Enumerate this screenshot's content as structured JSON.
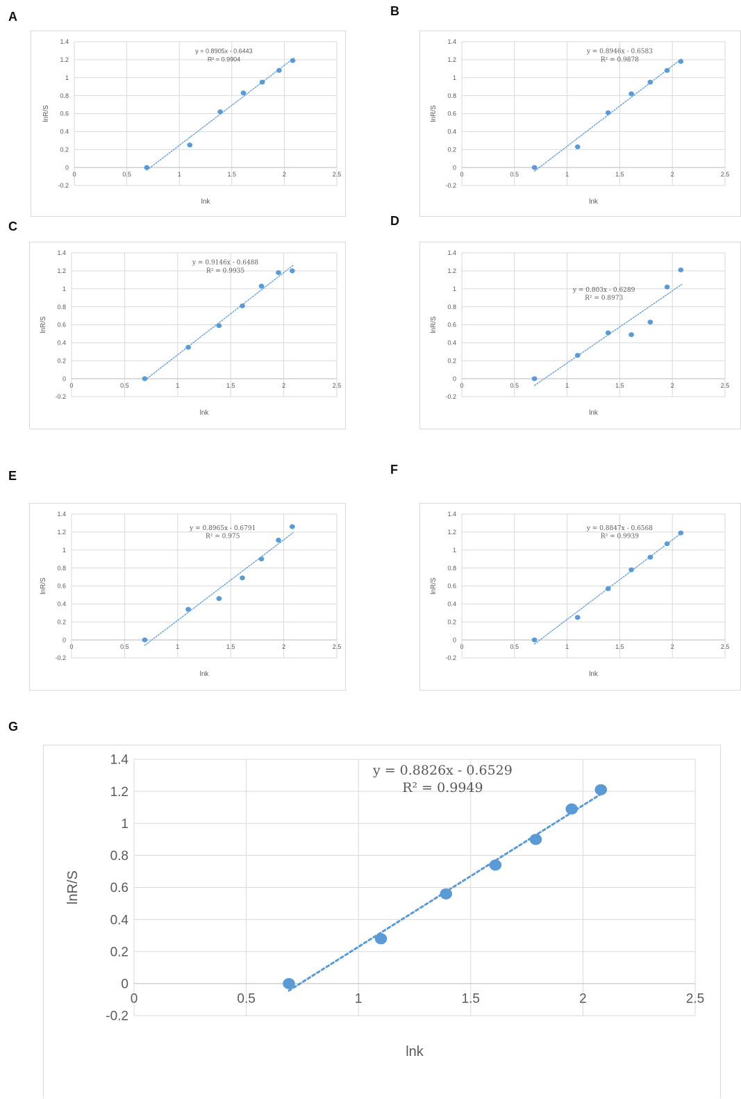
{
  "chart_data": [
    {
      "panel": "A",
      "type": "scatter",
      "x": [
        0.69,
        1.1,
        1.39,
        1.61,
        1.79,
        1.95,
        2.08
      ],
      "y": [
        0.0,
        0.25,
        0.62,
        0.83,
        0.95,
        1.08,
        1.19
      ],
      "trendline": {
        "slope": 0.8905,
        "intercept": -0.6443
      },
      "equation": "y = 0.8905x - 0.6443",
      "r2": "R² = 0.9904",
      "xlabel": "lnk",
      "ylabel": "lnR/S",
      "xlim": [
        0,
        2.5
      ],
      "ylim": [
        -0.2,
        1.4
      ],
      "xticks": [
        "0",
        "0.5",
        "1",
        "1.5",
        "2",
        "2.5"
      ],
      "yticks": [
        "-0.2",
        "0",
        "0.2",
        "0.4",
        "0.6",
        "0.8",
        "1",
        "1.2",
        "1.4"
      ],
      "grid": true
    },
    {
      "panel": "B",
      "type": "scatter",
      "x": [
        0.69,
        1.1,
        1.39,
        1.61,
        1.79,
        1.95,
        2.08
      ],
      "y": [
        0.0,
        0.23,
        0.61,
        0.82,
        0.95,
        1.08,
        1.18
      ],
      "trendline": {
        "slope": 0.8946,
        "intercept": -0.6583
      },
      "equation": "y = 0.8946x - 0.6583",
      "r2": "R² = 0.9878",
      "xlabel": "lnk",
      "ylabel": "lnR/S",
      "xlim": [
        0,
        2.5
      ],
      "ylim": [
        -0.2,
        1.4
      ],
      "xticks": [
        "0",
        "0.5",
        "1",
        "1.5",
        "2",
        "2.5"
      ],
      "yticks": [
        "-0.2",
        "0",
        "0.2",
        "0.4",
        "0.6",
        "0.8",
        "1",
        "1.2",
        "1.4"
      ],
      "grid": true
    },
    {
      "panel": "C",
      "type": "scatter",
      "x": [
        0.69,
        1.1,
        1.39,
        1.61,
        1.79,
        1.95,
        2.08
      ],
      "y": [
        0.0,
        0.35,
        0.59,
        0.81,
        1.03,
        1.18,
        1.2
      ],
      "trendline": {
        "slope": 0.9146,
        "intercept": -0.6488
      },
      "equation": "y = 0.9146x - 0.6488",
      "r2": "R² = 0.9935",
      "xlabel": "lnk",
      "ylabel": "lnR/S",
      "xlim": [
        0,
        2.5
      ],
      "ylim": [
        -0.2,
        1.4
      ],
      "xticks": [
        "0",
        "0.5",
        "1",
        "1.5",
        "2",
        "2.5"
      ],
      "yticks": [
        "-0.2",
        "0",
        "0.2",
        "0.4",
        "0.6",
        "0.8",
        "1",
        "1.2",
        "1.4"
      ],
      "grid": true
    },
    {
      "panel": "D",
      "type": "scatter",
      "x": [
        0.69,
        1.1,
        1.39,
        1.61,
        1.79,
        1.95,
        2.08
      ],
      "y": [
        0.0,
        0.26,
        0.51,
        0.49,
        0.63,
        1.02,
        1.21
      ],
      "trendline": {
        "slope": 0.803,
        "intercept": -0.6289
      },
      "equation": "y = 0.803x - 0.6289",
      "r2": "R² = 0.8973",
      "xlabel": "lnk",
      "ylabel": "lnR/S",
      "xlim": [
        0,
        2.5
      ],
      "ylim": [
        -0.2,
        1.4
      ],
      "xticks": [
        "0",
        "0.5",
        "1",
        "1.5",
        "2",
        "2.5"
      ],
      "yticks": [
        "-0.2",
        "0",
        "0.2",
        "0.4",
        "0.6",
        "0.8",
        "1",
        "1.2",
        "1.4"
      ],
      "grid": true
    },
    {
      "panel": "E",
      "type": "scatter",
      "x": [
        0.69,
        1.1,
        1.39,
        1.61,
        1.79,
        1.95,
        2.08
      ],
      "y": [
        0.0,
        0.34,
        0.46,
        0.69,
        0.9,
        1.11,
        1.26
      ],
      "trendline": {
        "slope": 0.8965,
        "intercept": -0.6791
      },
      "equation": "y = 0.8965x - 0.6791",
      "r2": "R² = 0.975",
      "xlabel": "lnk",
      "ylabel": "lnR/S",
      "xlim": [
        0,
        2.5
      ],
      "ylim": [
        -0.2,
        1.4
      ],
      "xticks": [
        "0",
        "0.5",
        "1",
        "1.5",
        "2",
        "2.5"
      ],
      "yticks": [
        "-0.2",
        "0",
        "0.2",
        "0.4",
        "0.6",
        "0.8",
        "1",
        "1.2",
        "1.4"
      ],
      "grid": true
    },
    {
      "panel": "F",
      "type": "scatter",
      "x": [
        0.69,
        1.1,
        1.39,
        1.61,
        1.79,
        1.95,
        2.08
      ],
      "y": [
        0.0,
        0.25,
        0.57,
        0.78,
        0.92,
        1.07,
        1.19
      ],
      "trendline": {
        "slope": 0.8847,
        "intercept": -0.6568
      },
      "equation": "y = 0.8847x - 0.6568",
      "r2": "R² = 0.9939",
      "xlabel": "lnk",
      "ylabel": "lnR/S",
      "xlim": [
        0,
        2.5
      ],
      "ylim": [
        -0.2,
        1.4
      ],
      "xticks": [
        "0",
        "0.5",
        "1",
        "1.5",
        "2",
        "2.5"
      ],
      "yticks": [
        "-0.2",
        "0",
        "0.2",
        "0.4",
        "0.6",
        "0.8",
        "1",
        "1.2",
        "1.4"
      ],
      "grid": true
    },
    {
      "panel": "G",
      "type": "scatter",
      "x": [
        0.69,
        1.1,
        1.39,
        1.61,
        1.79,
        1.95,
        2.08
      ],
      "y": [
        0.0,
        0.28,
        0.56,
        0.74,
        0.9,
        1.09,
        1.21
      ],
      "trendline": {
        "slope": 0.8826,
        "intercept": -0.6529
      },
      "equation": "y = 0.8826x - 0.6529",
      "r2": "R² = 0.9949",
      "xlabel": "lnk",
      "ylabel": "lnR/S",
      "xlim": [
        0,
        2.5
      ],
      "ylim": [
        -0.2,
        1.4
      ],
      "xticks": [
        "0",
        "0.5",
        "1",
        "1.5",
        "2",
        "2.5"
      ],
      "yticks": [
        "-0.2",
        "0",
        "0.2",
        "0.4",
        "0.6",
        "0.8",
        "1",
        "1.2",
        "1.4"
      ],
      "grid": true
    }
  ],
  "colors": {
    "marker": "#5b9bd5",
    "trend": "#5b9bd5",
    "grid": "#d9d9d9",
    "text": "#595959",
    "border": "#d9d9d9"
  }
}
